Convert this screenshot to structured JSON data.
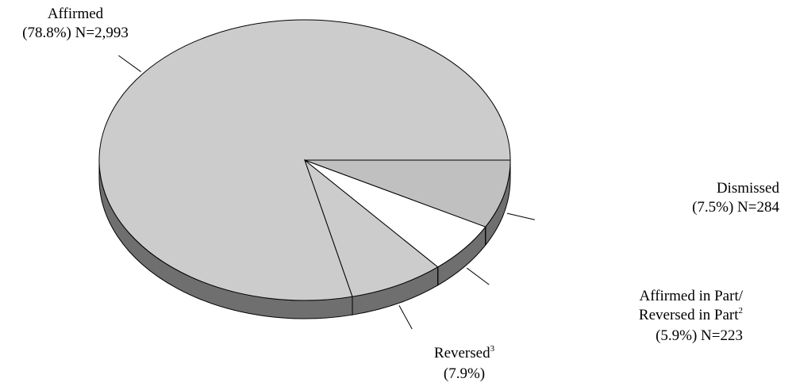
{
  "chart_data": {
    "type": "pie",
    "style": "3d",
    "colors": {
      "Affirmed": "#cccccc",
      "Dismissed": "#cccccc",
      "Affirmed in Part/Reversed in Part": "#ffffff",
      "Reversed": "#c0c0c0",
      "side": "#6f6f6f",
      "outline": "#000000"
    },
    "slices": [
      {
        "label": "Affirmed",
        "percent": 78.8,
        "n": "2,993"
      },
      {
        "label": "Dismissed",
        "percent": 7.5,
        "n": "284"
      },
      {
        "label": "Affirmed in Part/Reversed in Part",
        "percent": 5.9,
        "n": "223"
      },
      {
        "label": "Reversed",
        "percent": 7.9,
        "n": ""
      }
    ],
    "labels": {
      "affirmed": {
        "line1": "Affirmed",
        "line2": "(78.8%) N=2,993"
      },
      "dismissed": {
        "line1": "Dismissed",
        "line2": "(7.5%) N=284"
      },
      "partial": {
        "line1": "Affirmed in Part/",
        "line2a": "Reversed in Part",
        "sup": "2",
        "line3": "(5.9%) N=223"
      },
      "reversed": {
        "line1": "Reversed",
        "sup": "3",
        "line2": "(7.9%)"
      }
    }
  }
}
